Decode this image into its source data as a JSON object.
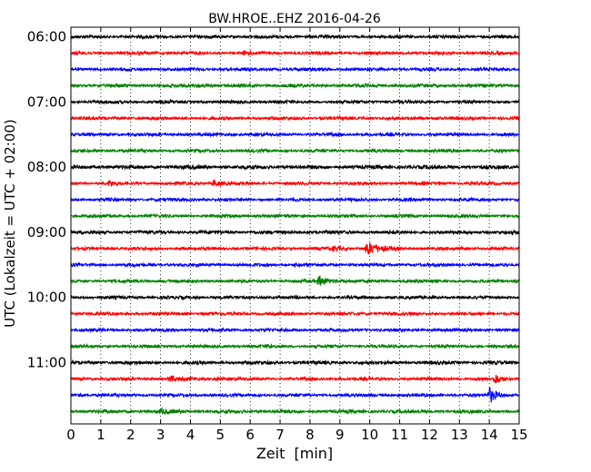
{
  "chart_data": {
    "type": "line",
    "title": "BW.HROE..EHZ 2016-04-26",
    "xlabel": "Zeit  [min]",
    "ylabel": "UTC (Lokalzeit = UTC + 02:00)",
    "xlim": [
      0,
      15
    ],
    "x_ticks": [
      "0",
      "1",
      "2",
      "3",
      "4",
      "5",
      "6",
      "7",
      "8",
      "9",
      "10",
      "11",
      "12",
      "13",
      "14",
      "15"
    ],
    "grid": "vertical dotted lines at each minute",
    "trace_interval_min": 15,
    "trace_colors": [
      "#000000",
      "#ff0000",
      "#0000ff",
      "#008000"
    ],
    "y_tick_labels": [
      {
        "label": "06:00",
        "trace": 0
      },
      {
        "label": "07:00",
        "trace": 4
      },
      {
        "label": "08:00",
        "trace": 8
      },
      {
        "label": "09:00",
        "trace": 12
      },
      {
        "label": "10:00",
        "trace": 16
      },
      {
        "label": "11:00",
        "trace": 20
      }
    ],
    "series": [
      {
        "start": "06:00",
        "color": "#000000",
        "noise": 1.0,
        "events": []
      },
      {
        "start": "06:15",
        "color": "#ff0000",
        "noise": 1.0,
        "events": [
          {
            "min": 5.8,
            "amp": 1.5,
            "dur": 0.5
          }
        ]
      },
      {
        "start": "06:30",
        "color": "#0000ff",
        "noise": 1.0,
        "events": []
      },
      {
        "start": "06:45",
        "color": "#008000",
        "noise": 1.1,
        "events": [
          {
            "min": 4.3,
            "amp": 1.8,
            "dur": 0.6
          }
        ]
      },
      {
        "start": "07:00",
        "color": "#000000",
        "noise": 1.0,
        "events": []
      },
      {
        "start": "07:15",
        "color": "#ff0000",
        "noise": 1.0,
        "events": [
          {
            "min": 12.2,
            "amp": 1.5,
            "dur": 0.3
          }
        ]
      },
      {
        "start": "07:30",
        "color": "#0000ff",
        "noise": 1.0,
        "events": []
      },
      {
        "start": "07:45",
        "color": "#008000",
        "noise": 1.0,
        "events": []
      },
      {
        "start": "08:00",
        "color": "#000000",
        "noise": 1.2,
        "events": []
      },
      {
        "start": "08:15",
        "color": "#ff0000",
        "noise": 1.0,
        "events": [
          {
            "min": 1.3,
            "amp": 3.5,
            "dur": 0.3
          },
          {
            "min": 4.8,
            "amp": 4.0,
            "dur": 0.6
          }
        ]
      },
      {
        "start": "08:30",
        "color": "#0000ff",
        "noise": 1.0,
        "events": []
      },
      {
        "start": "08:45",
        "color": "#008000",
        "noise": 1.0,
        "events": []
      },
      {
        "start": "09:00",
        "color": "#000000",
        "noise": 1.1,
        "events": []
      },
      {
        "start": "09:15",
        "color": "#ff0000",
        "noise": 1.0,
        "events": [
          {
            "min": 8.8,
            "amp": 2.0,
            "dur": 1.0
          },
          {
            "min": 9.9,
            "amp": 7.0,
            "dur": 1.3
          }
        ]
      },
      {
        "start": "09:30",
        "color": "#0000ff",
        "noise": 1.0,
        "events": [
          {
            "min": 7.5,
            "amp": 1.5,
            "dur": 0.5
          }
        ]
      },
      {
        "start": "09:45",
        "color": "#008000",
        "noise": 1.0,
        "events": [
          {
            "min": 8.3,
            "amp": 5.0,
            "dur": 1.0
          },
          {
            "min": 14.9,
            "amp": 2.5,
            "dur": 0.3
          }
        ]
      },
      {
        "start": "10:00",
        "color": "#000000",
        "noise": 1.0,
        "events": []
      },
      {
        "start": "10:15",
        "color": "#ff0000",
        "noise": 1.0,
        "events": []
      },
      {
        "start": "10:30",
        "color": "#0000ff",
        "noise": 1.0,
        "events": []
      },
      {
        "start": "10:45",
        "color": "#008000",
        "noise": 1.0,
        "events": [
          {
            "min": 6.6,
            "amp": 1.5,
            "dur": 0.4
          }
        ]
      },
      {
        "start": "11:00",
        "color": "#000000",
        "noise": 1.1,
        "events": []
      },
      {
        "start": "11:15",
        "color": "#ff0000",
        "noise": 1.0,
        "events": [
          {
            "min": 3.3,
            "amp": 3.0,
            "dur": 0.9
          },
          {
            "min": 4.9,
            "amp": 2.0,
            "dur": 0.4
          },
          {
            "min": 14.2,
            "amp": 5.0,
            "dur": 0.6
          }
        ]
      },
      {
        "start": "11:30",
        "color": "#0000ff",
        "noise": 1.0,
        "events": [
          {
            "min": 0.3,
            "amp": 3.0,
            "dur": 0.2
          },
          {
            "min": 14.0,
            "amp": 8.0,
            "dur": 0.8
          }
        ]
      },
      {
        "start": "11:45",
        "color": "#008000",
        "noise": 1.1,
        "events": [
          {
            "min": 3.0,
            "amp": 2.0,
            "dur": 1.0
          }
        ]
      }
    ]
  }
}
